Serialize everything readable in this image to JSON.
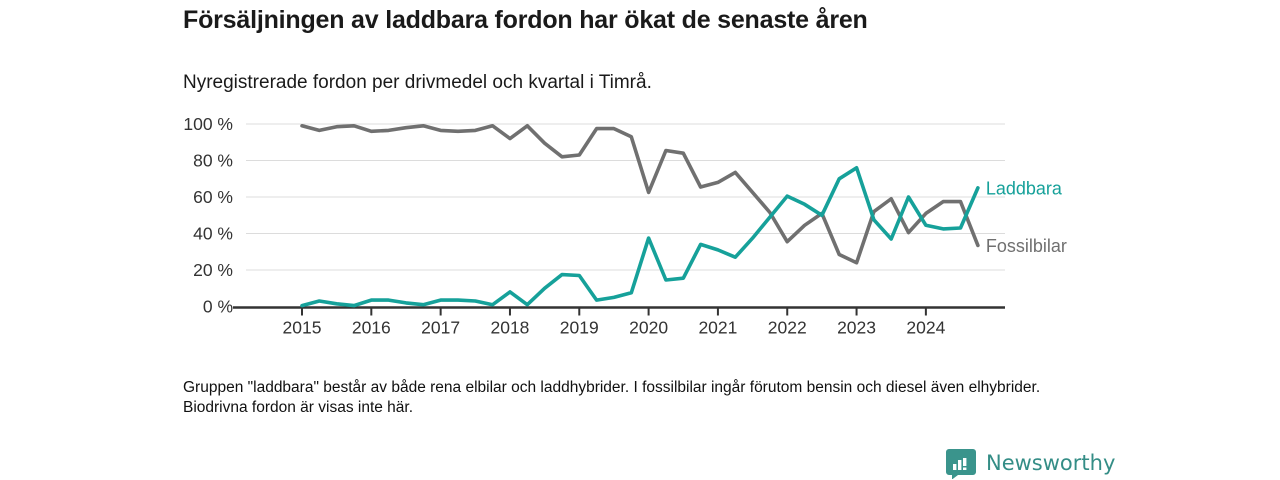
{
  "header": {
    "title": "Försäljningen av laddbara fordon har ökat de senaste åren",
    "subtitle": "Nyregistrerade fordon per drivmedel och kvartal i Timrå."
  },
  "chart_data": {
    "type": "line",
    "title": "Nyregistrerade fordon per drivmedel och kvartal i Timrå",
    "x_unit": "quarter",
    "x_start": "2015 Q1",
    "x_end": "2024 Q4",
    "x_tick_labels": [
      "2015",
      "2016",
      "2017",
      "2018",
      "2019",
      "2020",
      "2021",
      "2022",
      "2023",
      "2024"
    ],
    "y_tick_values": [
      0,
      20,
      40,
      60,
      80,
      100
    ],
    "y_tick_labels": [
      "0 %",
      "20 %",
      "40 %",
      "60 %",
      "80 %",
      "100 %"
    ],
    "ylim": [
      0,
      100
    ],
    "grid": "horizontal",
    "legend_position": "right-end-of-lines",
    "series": [
      {
        "name": "Fossilbilar",
        "color": "#707070",
        "values": [
          99,
          96.5,
          98.5,
          99,
          96,
          96.5,
          98,
          99,
          96.5,
          96,
          96.5,
          99,
          92,
          99,
          89.5,
          82,
          83,
          97.5,
          97.5,
          93,
          62.5,
          85.5,
          84,
          65.5,
          68,
          73.5,
          62.5,
          51.5,
          35.5,
          44.5,
          51,
          28.5,
          24,
          52,
          59,
          40.5,
          51,
          57.5,
          57.5,
          33.5
        ]
      },
      {
        "name": "Laddbara",
        "color": "#16a19a",
        "values": [
          0.5,
          3,
          1.5,
          0.5,
          3.5,
          3.5,
          2,
          1,
          3.5,
          3.5,
          3,
          1,
          8,
          1,
          10,
          17.5,
          17,
          3.5,
          5,
          7.5,
          37.5,
          14.5,
          15.5,
          34,
          31,
          27,
          37.5,
          49,
          60.5,
          56,
          50,
          70,
          76,
          47.5,
          37,
          60,
          44.5,
          42.5,
          43,
          65
        ]
      }
    ]
  },
  "footnote": {
    "text": "Gruppen \"laddbara\" består av både rena elbilar och laddhybrider. I fossilbilar ingår förutom bensin och diesel även elhybrider. Biodrivna fordon är visas inte här."
  },
  "logo": {
    "text": "Newsworthy",
    "color": "#348d86",
    "icon": "bar-chart-bubble-icon"
  },
  "colors": {
    "laddbara": "#16a19a",
    "fossilbilar": "#707070",
    "gridline": "#dcdcdc",
    "axis": "#333333",
    "text": "#1a1a1a"
  }
}
